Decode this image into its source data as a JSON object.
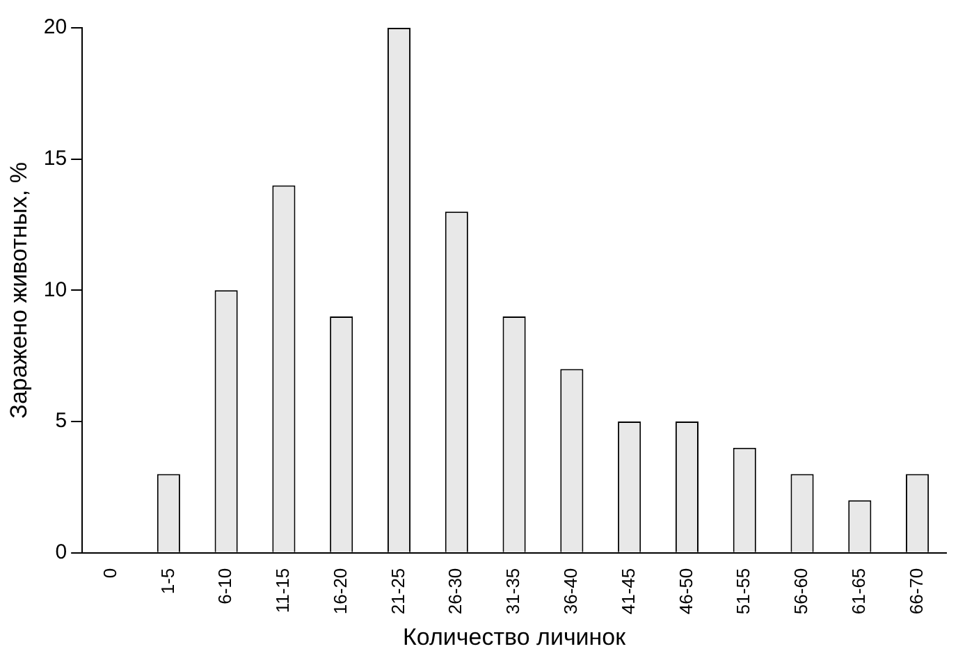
{
  "chart_data": {
    "type": "bar",
    "xlabel": "Количество личинок",
    "ylabel": "Заражено животных, %",
    "categories": [
      "0",
      "1-5",
      "6-10",
      "11-15",
      "16-20",
      "21-25",
      "26-30",
      "31-35",
      "36-40",
      "41-45",
      "46-50",
      "51-55",
      "56-60",
      "61-65",
      "66-70"
    ],
    "values": [
      0,
      3,
      10,
      14,
      9,
      20,
      13,
      9,
      7,
      5,
      5,
      4,
      3,
      2,
      3
    ],
    "color": "#e8e8e8",
    "ylim": [
      0,
      20
    ],
    "yticks": [
      0,
      5,
      10,
      15,
      20
    ],
    "grid": false
  }
}
